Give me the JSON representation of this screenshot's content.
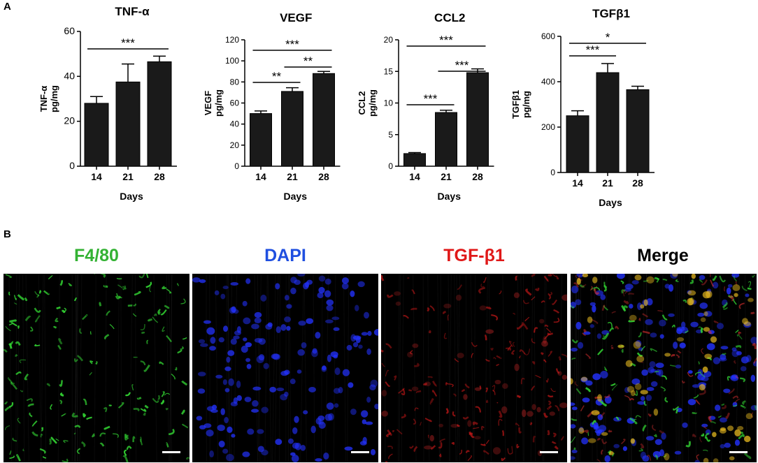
{
  "panel_a_label": "A",
  "panel_b_label": "B",
  "chart_data": [
    {
      "type": "bar",
      "title": "TNF-α",
      "ylabel_line1": "TNF-α",
      "ylabel_line2": "pg/mg",
      "xlabel": "Days",
      "categories": [
        "14",
        "21",
        "28"
      ],
      "values": [
        28,
        37.5,
        46.5
      ],
      "errors": [
        3,
        8,
        2.5
      ],
      "ylim": [
        0,
        60
      ],
      "yticks": [
        "0",
        "20",
        "40",
        "60"
      ],
      "significance": [
        {
          "from": 0,
          "to": 2,
          "label": "***"
        }
      ]
    },
    {
      "type": "bar",
      "title": "VEGF",
      "ylabel_line1": "VEGF",
      "ylabel_line2": "pg/mg",
      "xlabel": "Days",
      "categories": [
        "14",
        "21",
        "28"
      ],
      "values": [
        50,
        71,
        88
      ],
      "errors": [
        2.5,
        3.5,
        2
      ],
      "ylim": [
        0,
        120
      ],
      "yticks": [
        "0",
        "20",
        "40",
        "60",
        "80",
        "100",
        "120"
      ],
      "significance": [
        {
          "from": 0,
          "to": 1,
          "label": "**"
        },
        {
          "from": 1,
          "to": 2,
          "label": "**"
        },
        {
          "from": 0,
          "to": 2,
          "label": "***"
        }
      ]
    },
    {
      "type": "bar",
      "title": "CCL2",
      "ylabel_line1": "CCL2",
      "ylabel_line2": "pg/mg",
      "xlabel": "Days",
      "categories": [
        "14",
        "21",
        "28"
      ],
      "values": [
        2,
        8.5,
        14.8
      ],
      "errors": [
        0.15,
        0.35,
        0.6
      ],
      "ylim": [
        0,
        20
      ],
      "yticks": [
        "0",
        "5",
        "10",
        "15",
        "20"
      ],
      "significance": [
        {
          "from": 0,
          "to": 1,
          "label": "***"
        },
        {
          "from": 1,
          "to": 2,
          "label": "***"
        },
        {
          "from": 0,
          "to": 2,
          "label": "***"
        }
      ]
    },
    {
      "type": "bar",
      "title": "TGFβ1",
      "ylabel_line1": "TGFβ1",
      "ylabel_line2": "pg/mg",
      "xlabel": "Days",
      "categories": [
        "14",
        "21",
        "28"
      ],
      "values": [
        250,
        440,
        365
      ],
      "errors": [
        22,
        40,
        15
      ],
      "ylim": [
        0,
        600
      ],
      "yticks": [
        "0",
        "200",
        "400",
        "600"
      ],
      "significance": [
        {
          "from": 0,
          "to": 1,
          "label": "***"
        },
        {
          "from": 0,
          "to": 2,
          "label": "*"
        }
      ]
    }
  ],
  "micrographs": [
    {
      "title": "F4/80",
      "title_color": "#33b233",
      "stain_color": "#2fe02f",
      "shape": "fibrous"
    },
    {
      "title": "DAPI",
      "title_color": "#1f4fe0",
      "stain_color": "#2030ff",
      "shape": "nuclei"
    },
    {
      "title": "TGF-β1",
      "title_color": "#e01818",
      "stain_color": "#e02020",
      "shape": "fibrous"
    },
    {
      "title": "Merge",
      "title_color": "#000000",
      "stain_color": "mixed",
      "shape": "merge"
    }
  ]
}
